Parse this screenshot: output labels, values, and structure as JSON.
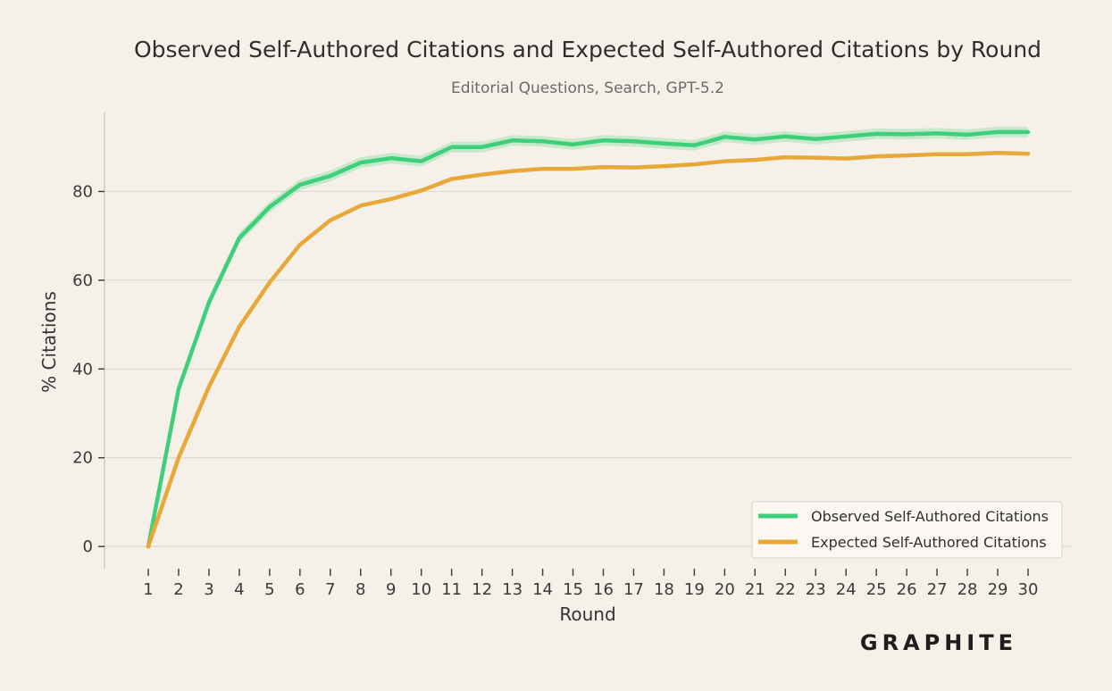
{
  "chart_data": {
    "type": "line",
    "title": "Observed Self-Authored Citations and Expected Self-Authored Citations by Round",
    "subtitle": "Editorial Questions, Search, GPT-5.2",
    "xlabel": "Round",
    "ylabel": "% Citations",
    "x": [
      1,
      2,
      3,
      4,
      5,
      6,
      7,
      8,
      9,
      10,
      11,
      12,
      13,
      14,
      15,
      16,
      17,
      18,
      19,
      20,
      21,
      22,
      23,
      24,
      25,
      26,
      27,
      28,
      29,
      30
    ],
    "ylim": [
      -5,
      99
    ],
    "yticks": [
      0,
      20,
      40,
      60,
      80
    ],
    "grid": "horizontal",
    "legend_position": "bottom-right",
    "series": [
      {
        "name": "Observed Self-Authored Citations",
        "color": "#3ecf7a",
        "band_color": "#a8e3b8",
        "values": [
          0,
          35.5,
          55,
          69.5,
          76.5,
          81.5,
          83.5,
          86.5,
          87.5,
          86.8,
          90,
          90,
          91.5,
          91.3,
          90.6,
          91.5,
          91.3,
          90.8,
          90.4,
          92.3,
          91.7,
          92.4,
          91.8,
          92.4,
          93,
          92.9,
          93.1,
          92.8,
          93.4,
          93.4
        ],
        "band": 1.2
      },
      {
        "name": "Expected Self-Authored Citations",
        "color": "#e8a838",
        "values": [
          0,
          20,
          36,
          49.5,
          59.5,
          68,
          73.5,
          76.8,
          78.3,
          80.2,
          82.8,
          83.8,
          84.6,
          85.1,
          85.1,
          85.5,
          85.4,
          85.7,
          86.1,
          86.8,
          87.1,
          87.7,
          87.6,
          87.4,
          87.9,
          88.1,
          88.4,
          88.4,
          88.7,
          88.5
        ]
      }
    ]
  },
  "brand": {
    "logo_text": "GRAPHITE"
  }
}
